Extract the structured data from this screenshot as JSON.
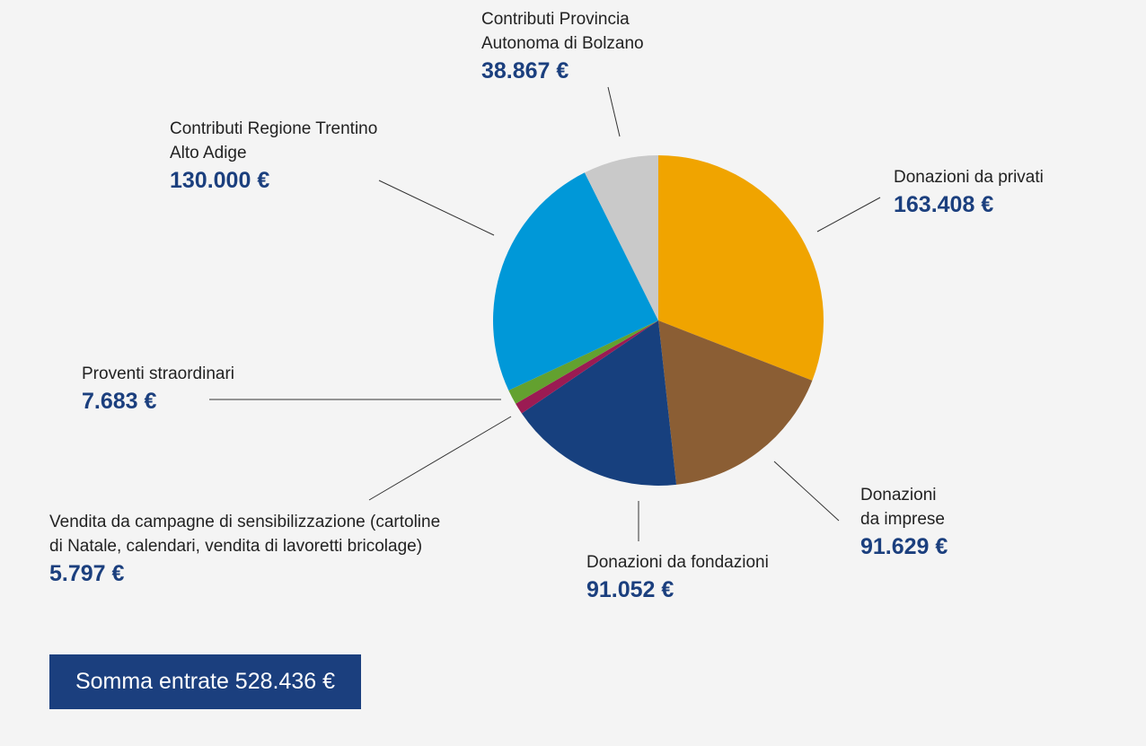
{
  "chart_data": {
    "type": "pie",
    "unit": "€",
    "slices": [
      {
        "label": "Donazioni da privati",
        "value": 163408,
        "display": "163.408 €",
        "color": "#f0a400"
      },
      {
        "label": "Donazioni\nda imprese",
        "value": 91629,
        "display": "91.629 €",
        "color": "#8b5e34"
      },
      {
        "label": "Donazioni da fondazioni",
        "value": 91052,
        "display": "91.052 €",
        "color": "#17407e"
      },
      {
        "label": "Vendita da campagne di  sensibilizzazione (cartoline\ndi Natale, calendari, vendita di lavoretti bricolage)",
        "value": 5797,
        "display": "5.797 €",
        "color": "#9b1b53"
      },
      {
        "label": "Proventi straordinari",
        "value": 7683,
        "display": "7.683 €",
        "color": "#63a12f"
      },
      {
        "label": "Contributi Regione Trentino\nAlto Adige",
        "value": 130000,
        "display": "130.000 €",
        "color": "#0098d8"
      },
      {
        "label": "Contributi Provincia\nAutonoma di Bolzano",
        "value": 38867,
        "display": "38.867 €",
        "color": "#c9c9c9"
      }
    ]
  },
  "total_label": "Somma entrate 528.436 €",
  "colors": {
    "value_text": "#1b3f7e",
    "total_bg": "#1b3f7e",
    "background": "#f4f4f4"
  }
}
